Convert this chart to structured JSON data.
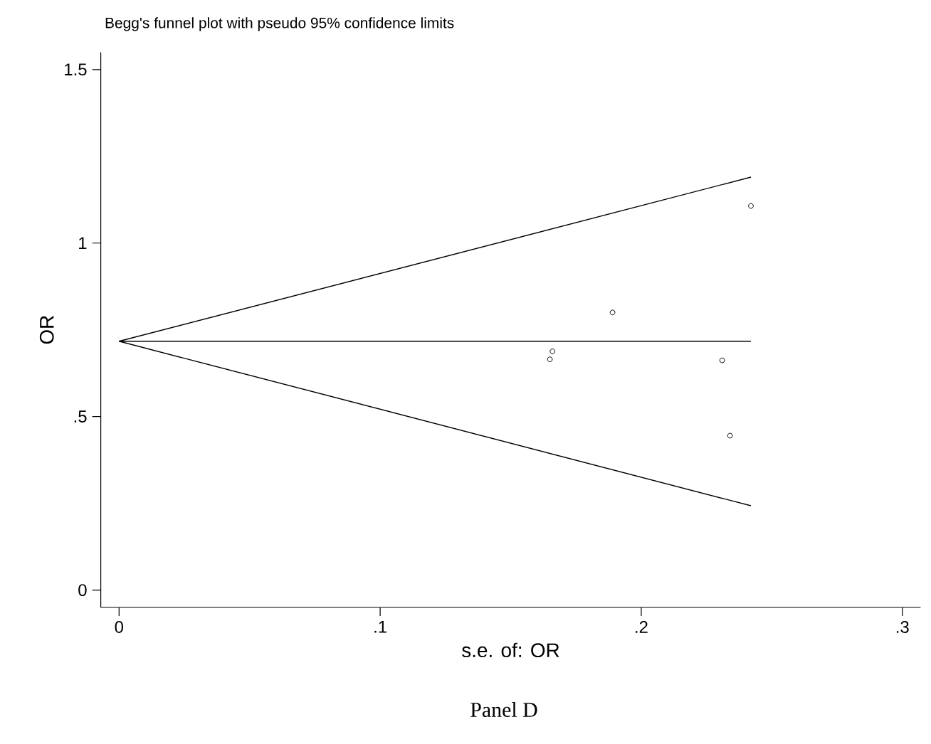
{
  "chart_data": {
    "type": "scatter",
    "title": "Begg's funnel plot with pseudo 95% confidence limits",
    "xlabel": "s.e. of: OR",
    "ylabel": "OR",
    "annotations": [
      "Panel D"
    ],
    "xlim": [
      -0.007,
      0.307
    ],
    "ylim": [
      -0.05,
      1.55
    ],
    "xticks": [
      0,
      {
        "value": 0.1,
        "label": ".1"
      },
      {
        "value": 0.2,
        "label": ".2"
      },
      {
        "value": 0.3,
        "label": ".3"
      }
    ],
    "yticks": [
      0,
      {
        "value": 0.5,
        "label": ".5"
      },
      1,
      1.5
    ],
    "grid": false,
    "series": [
      {
        "marker": "circle",
        "color": "#000000",
        "x": [
          0.242,
          0.189,
          0.166,
          0.165,
          0.231,
          0.234
        ],
        "values": [
          1.107,
          0.8,
          0.688,
          0.665,
          0.662,
          0.445
        ]
      },
      {
        "type": "line",
        "color": "#000000",
        "x": [
          0,
          0.242
        ],
        "values": [
          0.717,
          1.19
        ]
      },
      {
        "type": "line",
        "color": "#000000",
        "x": [
          0,
          0.242
        ],
        "values": [
          0.717,
          0.717
        ]
      },
      {
        "type": "line",
        "color": "#000000",
        "x": [
          0,
          0.242
        ],
        "values": [
          0.717,
          0.243
        ]
      }
    ]
  }
}
